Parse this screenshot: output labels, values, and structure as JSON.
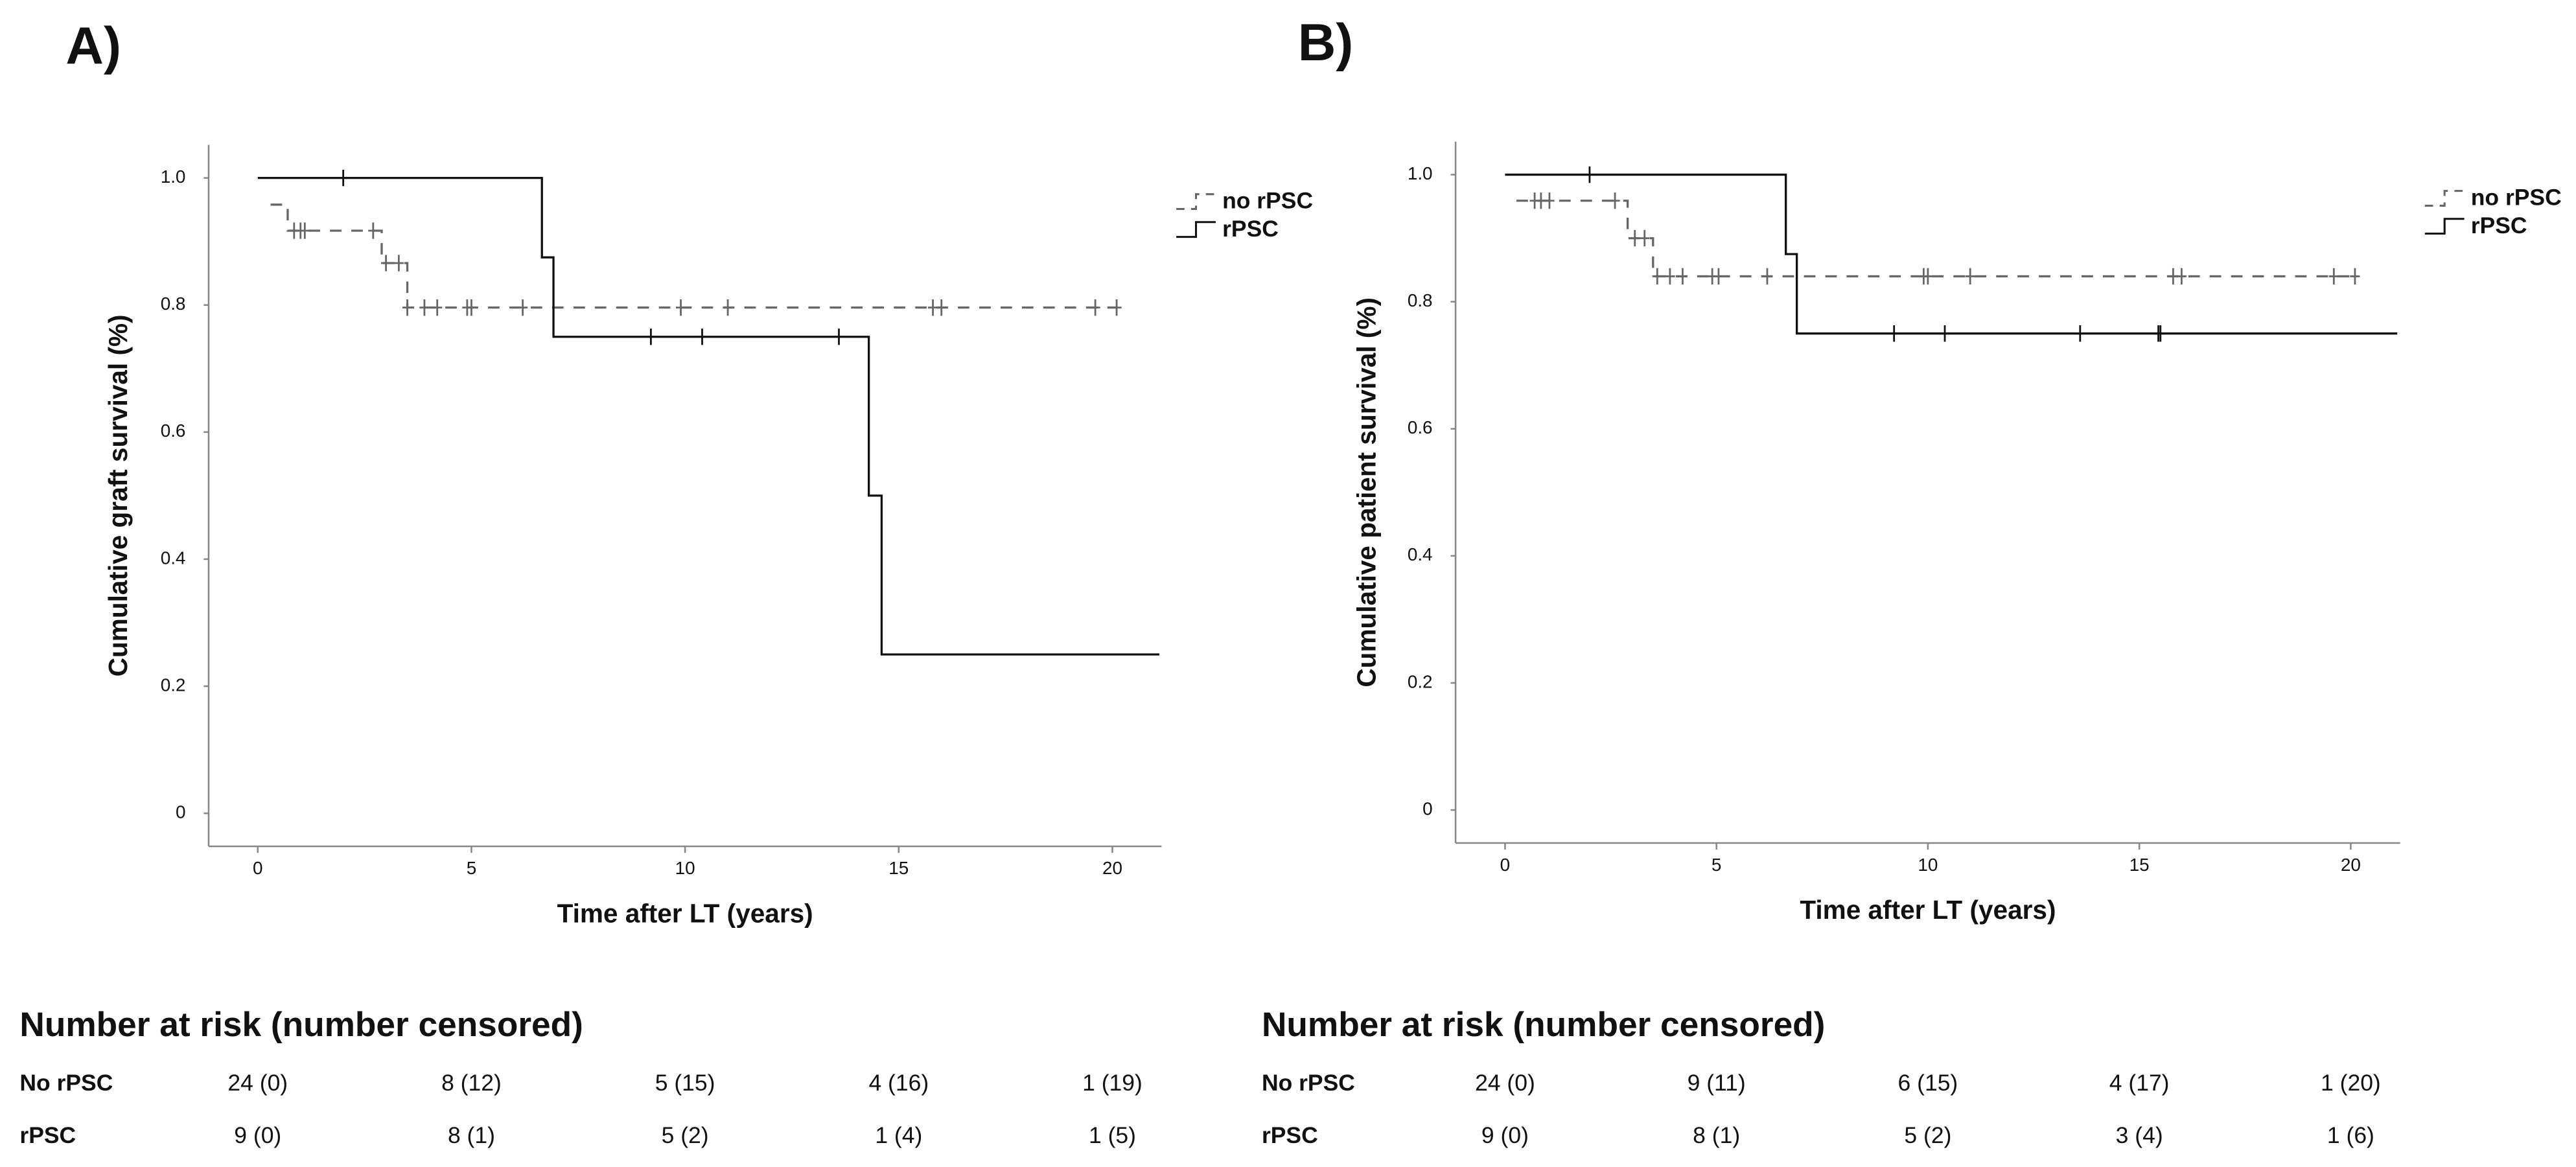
{
  "chart_data": [
    {
      "type": "step",
      "panel_label": "A)",
      "x_label": "Time after LT (years)",
      "y_label": "Cumulative graft survival (%)",
      "xlim": [
        -1.15,
        21.15
      ],
      "ylim": [
        -0.052,
        1.052
      ],
      "xticks": [
        0,
        5,
        10,
        15,
        20
      ],
      "yticks": [
        0,
        0.2,
        0.4,
        0.6,
        0.8,
        {
          "value": 1,
          "label": "1.0"
        }
      ],
      "series": [
        {
          "name": "no rPSC",
          "color": "#666666",
          "linestyle": "dashed",
          "x": [
            0.3,
            0.7,
            2.9,
            3.5,
            20.1
          ],
          "values": [
            0.958,
            0.917,
            0.866,
            0.796,
            0.796
          ],
          "censor_x": [
            0.85,
            1.0,
            1.1,
            2.7,
            3.0,
            3.3,
            3.5,
            3.9,
            4.2,
            4.9,
            5.0,
            6.2,
            9.9,
            11.0,
            15.8,
            16.0,
            19.6,
            20.1
          ],
          "censor_y": [
            0.917,
            0.917,
            0.917,
            0.917,
            0.866,
            0.866,
            0.796,
            0.796,
            0.796,
            0.796,
            0.796,
            0.796,
            0.796,
            0.796,
            0.796,
            0.796,
            0.796,
            0.796
          ]
        },
        {
          "name": "rPSC",
          "color": "#111111",
          "linestyle": "solid",
          "x": [
            0,
            6.65,
            6.92,
            14.3,
            14.6,
            21.1
          ],
          "values": [
            1,
            0.875,
            0.75,
            0.5,
            0.25,
            0.25
          ],
          "censor_x": [
            2.0,
            9.2,
            10.4,
            13.6
          ],
          "censor_y": [
            1,
            0.75,
            0.75,
            0.75
          ]
        }
      ],
      "risk_table": {
        "title": "Number at risk (number censored)",
        "rows": [
          {
            "label": "No rPSC",
            "cells": [
              "24 (0)",
              "8 (12)",
              "5 (15)",
              "4 (16)",
              "1 (19)"
            ]
          },
          {
            "label": "rPSC",
            "cells": [
              "9 (0)",
              "8 (1)",
              "5 (2)",
              "1 (4)",
              "1 (5)"
            ]
          }
        ]
      }
    },
    {
      "type": "step",
      "panel_label": "B)",
      "x_label": "Time after LT (years)",
      "y_label": "Cumulative patient survival (%)",
      "xlim": [
        -1.17,
        21.17
      ],
      "ylim": [
        -0.052,
        1.052
      ],
      "xticks": [
        0,
        5,
        10,
        15,
        20
      ],
      "yticks": [
        0,
        0.2,
        0.4,
        0.6,
        0.8,
        {
          "value": 1,
          "label": "1.0"
        }
      ],
      "series": [
        {
          "name": "no rPSC",
          "color": "#666666",
          "linestyle": "dashed",
          "x": [
            0.27,
            2.9,
            3.5,
            20.1
          ],
          "values": [
            0.959,
            0.9,
            0.84,
            0.84
          ],
          "censor_x": [
            0.7,
            0.85,
            1.05,
            2.6,
            3.07,
            3.3,
            3.6,
            3.9,
            4.2,
            4.9,
            5.05,
            6.2,
            9.9,
            10.0,
            11.0,
            15.8,
            16.0,
            19.6,
            20.1
          ],
          "censor_y": [
            0.959,
            0.959,
            0.959,
            0.959,
            0.9,
            0.9,
            0.84,
            0.84,
            0.84,
            0.84,
            0.84,
            0.84,
            0.84,
            0.84,
            0.84,
            0.84,
            0.84,
            0.84,
            0.84
          ]
        },
        {
          "name": "rPSC",
          "color": "#111111",
          "linestyle": "solid",
          "x": [
            0,
            6.64,
            6.9,
            21.1
          ],
          "values": [
            1,
            0.875,
            0.75,
            0.75
          ],
          "censor_x": [
            2.0,
            9.2,
            10.4,
            13.6,
            15.45,
            15.5
          ],
          "censor_y": [
            1,
            0.75,
            0.75,
            0.75,
            0.75,
            0.75
          ]
        }
      ],
      "risk_table": {
        "title": "Number at risk (number censored)",
        "rows": [
          {
            "label": "No rPSC",
            "cells": [
              "24 (0)",
              "9 (11)",
              "6 (15)",
              "4 (17)",
              "1 (20)"
            ]
          },
          {
            "label": "rPSC",
            "cells": [
              "9 (0)",
              "8 (1)",
              "5 (2)",
              "3 (4)",
              "1 (6)"
            ]
          }
        ]
      }
    }
  ]
}
